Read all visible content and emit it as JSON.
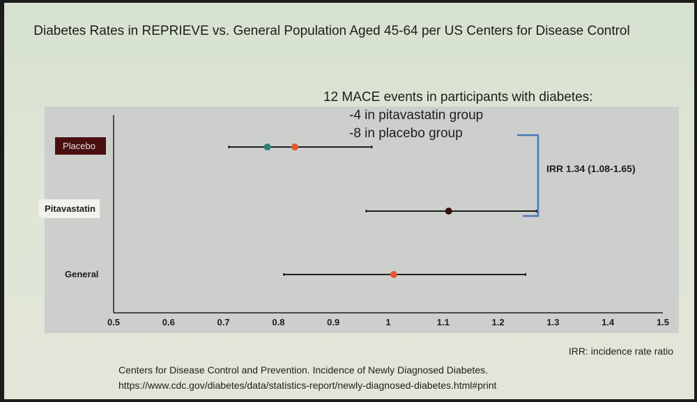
{
  "title": "Diabetes Rates in REPRIEVE vs. General Population Aged 45-64 per US Centers for Disease Control",
  "annotation": {
    "heading": "12 MACE events in participants with diabetes:",
    "line1": "-4 in pitavastatin group",
    "line2": "-8 in placebo group"
  },
  "irr_label": "IRR 1.34 (1.08-1.65)",
  "irr_note": "IRR: incidence rate ratio",
  "source": {
    "line1": "Centers for Disease Control and Prevention. Incidence of Newly Diagnosed Diabetes.",
    "line2": "https://www.cdc.gov/diabetes/data/statistics-report/newly-diagnosed-diabetes.html#print"
  },
  "colors": {
    "placebo_label_bg": "#4a0f0f",
    "placebo_label_fg": "#e6dede",
    "teal": "#2e7f73",
    "orange": "#e4552e",
    "dark_point": "#3a0e0e",
    "bracket": "#4a78b8",
    "line": "#1e1e1e"
  },
  "chart_data": {
    "type": "forest",
    "xlim": [
      0.5,
      1.5
    ],
    "xticks": [
      0.5,
      0.6,
      0.7,
      0.8,
      0.9,
      1,
      1.1,
      1.2,
      1.3,
      1.4,
      1.5
    ],
    "tick_labels": [
      "0.5",
      "0.6",
      "0.7",
      "0.8",
      "0.9",
      "1",
      "1.1",
      "1.2",
      "1.3",
      "1.4",
      "1.5"
    ],
    "rows": [
      {
        "category": "Placebo",
        "ci_low": 0.71,
        "ci_high": 0.97,
        "points": [
          {
            "value": 0.78,
            "color": "teal"
          },
          {
            "value": 0.83,
            "color": "orange"
          }
        ]
      },
      {
        "category": "Pitavastatin",
        "ci_low": 0.96,
        "ci_high": 1.27,
        "points": [
          {
            "value": 1.11,
            "color": "dark_point"
          }
        ]
      },
      {
        "category": "General",
        "ci_low": 0.81,
        "ci_high": 1.25,
        "points": [
          {
            "value": 1.01,
            "color": "orange"
          }
        ]
      }
    ]
  }
}
